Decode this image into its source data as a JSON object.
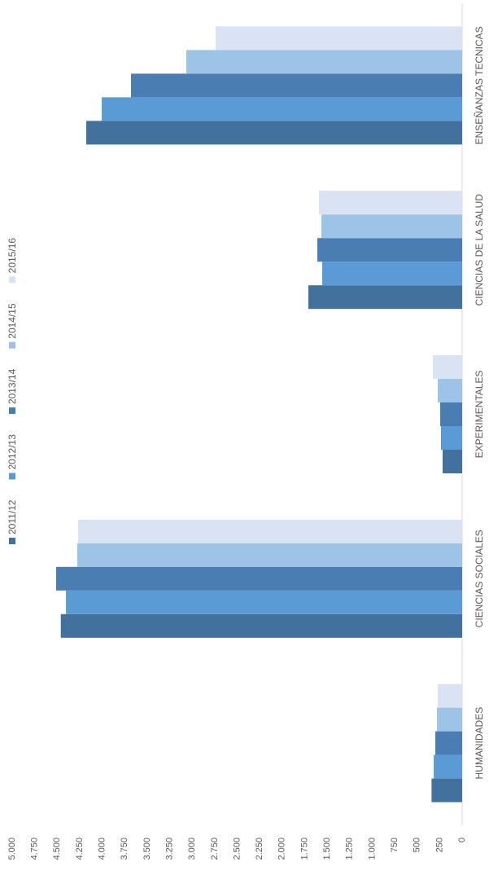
{
  "chart_data": {
    "type": "bar",
    "categories": [
      "HUMANIDADES",
      "CIENCIAS SOCIALES",
      "EXPERIMENTALES",
      "CIENCIAS DE LA SALUD",
      "ENSEÑANZAS TECNICAS"
    ],
    "series": [
      {
        "name": "2011/12",
        "color": "#41719c",
        "values": [
          340,
          4460,
          217,
          1709,
          4177
        ]
      },
      {
        "name": "2012/13",
        "color": "#5b9bd5",
        "values": [
          316,
          4403,
          235,
          1555,
          4005
        ]
      },
      {
        "name": "2013/14",
        "color": "#4a7db2",
        "values": [
          298,
          4512,
          244,
          1609,
          3680
        ]
      },
      {
        "name": "2014/15",
        "color": "#9dc3e6",
        "values": [
          280,
          4277,
          271,
          1564,
          3065
        ]
      },
      {
        "name": "2015/16",
        "color": "#dae3f3",
        "values": [
          271,
          4268,
          325,
          1591,
          2740
        ]
      }
    ],
    "ylim": [
      0,
      5000
    ],
    "yticks": [
      0,
      250,
      500,
      750,
      {
        "value": 1000,
        "label": "1.000"
      },
      {
        "value": 1250,
        "label": "1.250"
      },
      {
        "value": 1500,
        "label": "1.500"
      },
      {
        "value": 1750,
        "label": "1.750"
      },
      {
        "value": 2000,
        "label": "2.000"
      },
      {
        "value": 2250,
        "label": "2.250"
      },
      {
        "value": 2500,
        "label": "2.500"
      },
      {
        "value": 2750,
        "label": "2.750"
      },
      {
        "value": 3000,
        "label": "3.000"
      },
      {
        "value": 3250,
        "label": "3.250"
      },
      {
        "value": 3500,
        "label": "3.500"
      },
      {
        "value": 3750,
        "label": "3.750"
      },
      {
        "value": 4000,
        "label": "4.000"
      },
      {
        "value": 4250,
        "label": "4.250"
      },
      {
        "value": 4500,
        "label": "4.500"
      },
      {
        "value": 4750,
        "label": "4.750"
      },
      {
        "value": 5000,
        "label": "5.000"
      }
    ],
    "grid": false,
    "legend": "top"
  }
}
